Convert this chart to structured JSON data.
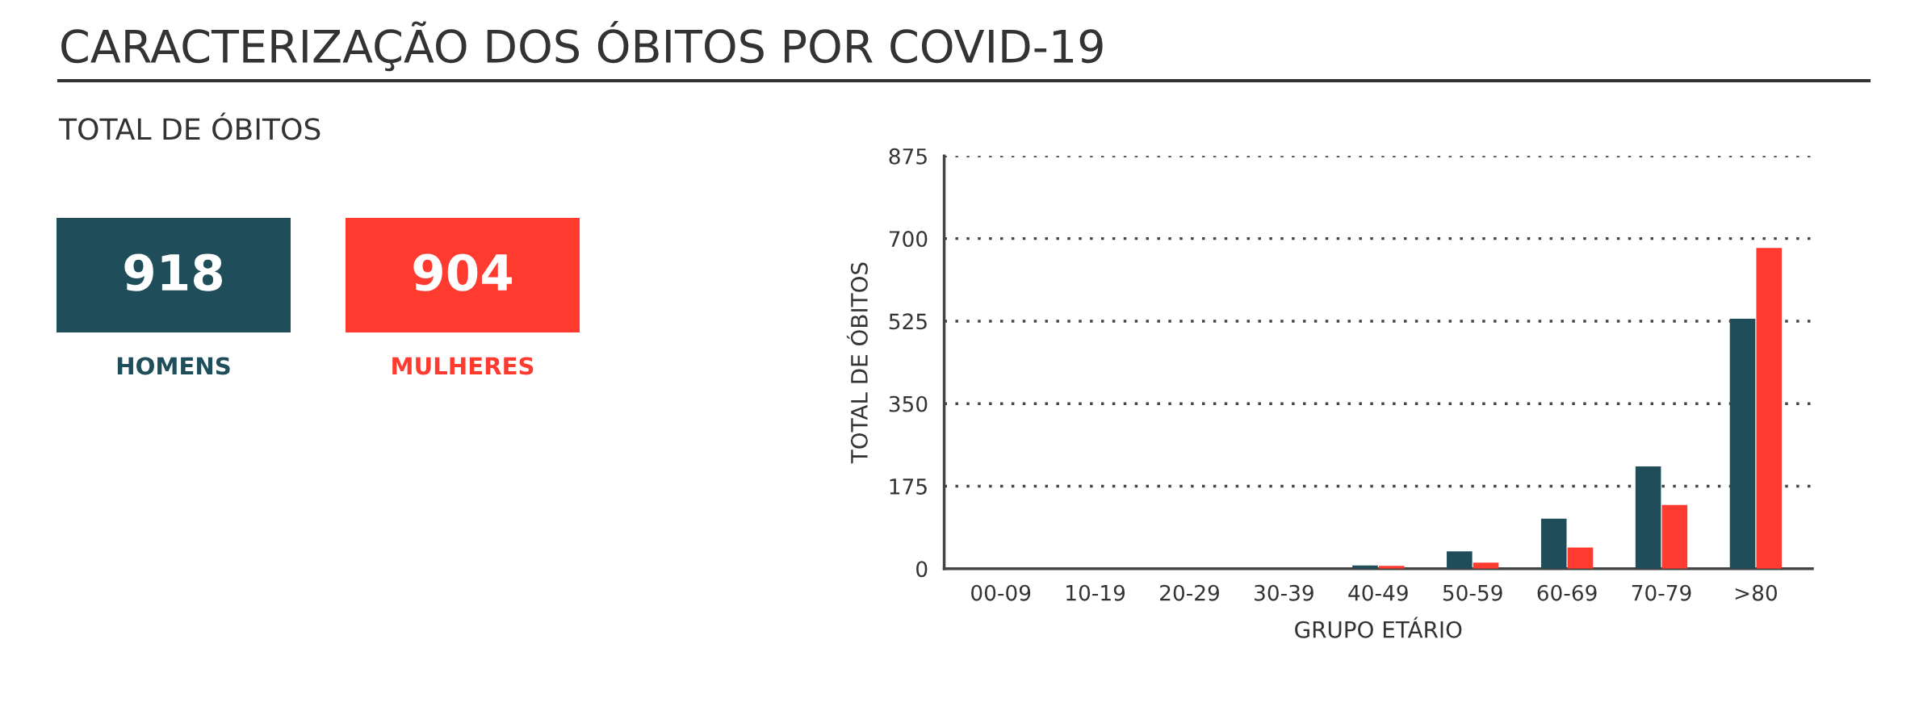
{
  "chart_data": [
    {
      "type": "other",
      "title": "CARACTERIZAÇÃO DOS ÓBITOS POR COVID-19",
      "subtitle": "TOTAL DE ÓBITOS",
      "categories": [
        "HOMENS",
        "MULHERES"
      ],
      "values": [
        918,
        904
      ],
      "data_labels": true,
      "colors": [
        "#1f4e5a",
        "#ff3b30"
      ]
    },
    {
      "type": "bar",
      "xlabel": "GRUPO ETÁRIO",
      "ylabel": "TOTAL DE ÓBITOS",
      "categories": [
        "00-09",
        "10-19",
        "20-29",
        "30-39",
        "40-49",
        "50-59",
        "60-69",
        "70-79",
        ">80"
      ],
      "series": [
        {
          "color": "#1f4e5a",
          "values": [
            0,
            0,
            0,
            0,
            7,
            37,
            106,
            217,
            530
          ]
        },
        {
          "color": "#ff3b30",
          "values": [
            0,
            0,
            0,
            0,
            6,
            13,
            45,
            135,
            680
          ]
        }
      ],
      "ylim": [
        0,
        875
      ],
      "yticks": [
        0,
        175,
        350,
        525,
        700,
        875
      ],
      "grid": "y"
    }
  ]
}
